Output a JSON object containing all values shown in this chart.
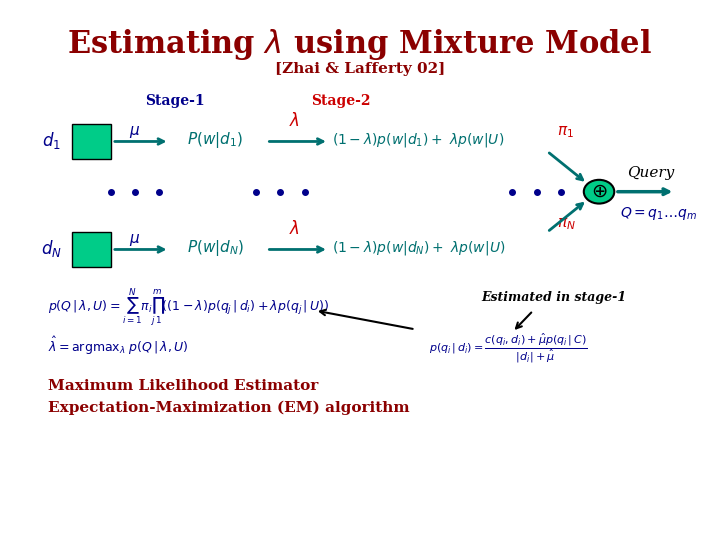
{
  "title": "Estimating $\\lambda$ using Mixture Model",
  "subtitle": "[Zhai & Lafferty 02]",
  "title_color": "#8B0000",
  "subtitle_color": "#8B0000",
  "stage1_label": "Stage-1",
  "stage2_label": "Stage-2",
  "stage_label_color": "#8B0000",
  "blue_color": "#00008B",
  "teal_color": "#008080",
  "dark_teal": "#006666",
  "red_color": "#CC0000",
  "bg_color": "#FFFFFF",
  "box_color": "#00CC88",
  "arrow_color": "#008080",
  "bottom_text1": "Maximum Likelihood Estimator",
  "bottom_text2": "Expectation-Maximization (EM) algorithm",
  "bottom_text_color": "#8B0000"
}
